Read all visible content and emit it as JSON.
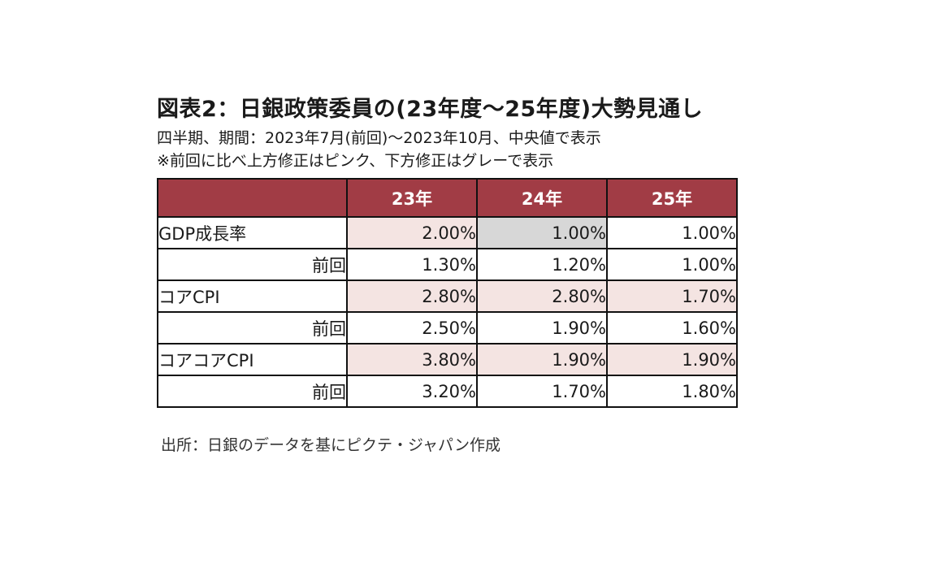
{
  "title": "図表2：日銀政策委員の(23年度～25年度)大勢見通し",
  "subtitle_1": "四半期、期間：2023年7月(前回)～2023年10月、中央値で表示",
  "subtitle_2": "※前回に比べ上方修正はピンク、下方修正はグレーで表示",
  "source": "出所：日銀のデータを基にピクテ・ジャパン作成",
  "colors": {
    "header_bg": "#a13c45",
    "upward_revision": "#f4e4e2",
    "downward_revision": "#d7d7d7"
  },
  "chart_data": {
    "type": "table",
    "columns": [
      "",
      "23年",
      "24年",
      "25年"
    ],
    "rows": [
      {
        "label": "GDP成長率",
        "values": [
          "2.00%",
          "1.00%",
          "1.00%"
        ],
        "highlight": [
          "pink",
          "grey",
          "white"
        ],
        "kind": "main"
      },
      {
        "label": "前回",
        "values": [
          "1.30%",
          "1.20%",
          "1.00%"
        ],
        "highlight": [
          "white",
          "white",
          "white"
        ],
        "kind": "prev"
      },
      {
        "label": "コアCPI",
        "values": [
          "2.80%",
          "2.80%",
          "1.70%"
        ],
        "highlight": [
          "pink",
          "pink",
          "pink"
        ],
        "kind": "main"
      },
      {
        "label": "前回",
        "values": [
          "2.50%",
          "1.90%",
          "1.60%"
        ],
        "highlight": [
          "white",
          "white",
          "white"
        ],
        "kind": "prev"
      },
      {
        "label": "コアコアCPI",
        "values": [
          "3.80%",
          "1.90%",
          "1.90%"
        ],
        "highlight": [
          "pink",
          "pink",
          "pink"
        ],
        "kind": "main"
      },
      {
        "label": "前回",
        "values": [
          "3.20%",
          "1.70%",
          "1.80%"
        ],
        "highlight": [
          "white",
          "white",
          "white"
        ],
        "kind": "prev"
      }
    ]
  }
}
